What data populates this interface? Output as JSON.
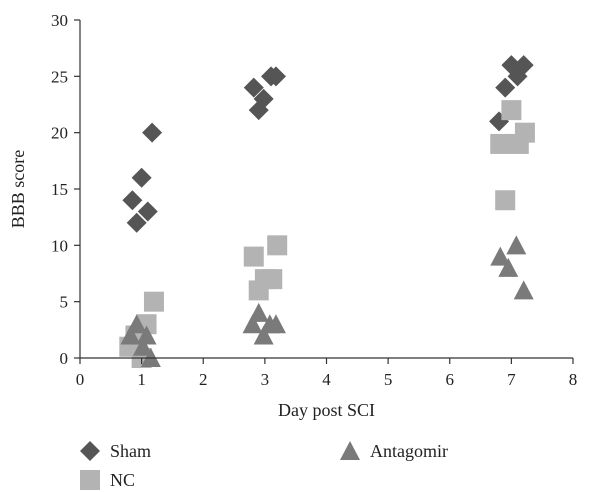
{
  "chart_data": {
    "type": "scatter",
    "title": "",
    "xlabel": "Day post SCI",
    "ylabel": "BBB score",
    "xlim": [
      0,
      8
    ],
    "ylim": [
      0,
      30
    ],
    "xticks": [
      0,
      1,
      2,
      3,
      4,
      5,
      6,
      7,
      8
    ],
    "yticks": [
      0,
      5,
      10,
      15,
      20,
      25,
      30
    ],
    "grid": false,
    "legend_position": "bottom",
    "series": [
      {
        "name": "Sham",
        "marker": "diamond",
        "color": "#555555",
        "points": [
          {
            "x": 0.85,
            "y": 14
          },
          {
            "x": 0.92,
            "y": 12
          },
          {
            "x": 1.0,
            "y": 16
          },
          {
            "x": 1.1,
            "y": 13
          },
          {
            "x": 1.17,
            "y": 20
          },
          {
            "x": 2.82,
            "y": 24
          },
          {
            "x": 2.9,
            "y": 22
          },
          {
            "x": 2.98,
            "y": 23
          },
          {
            "x": 3.1,
            "y": 25
          },
          {
            "x": 3.18,
            "y": 25
          },
          {
            "x": 6.8,
            "y": 21
          },
          {
            "x": 6.9,
            "y": 24
          },
          {
            "x": 7.0,
            "y": 26
          },
          {
            "x": 7.1,
            "y": 25
          },
          {
            "x": 7.2,
            "y": 26
          }
        ]
      },
      {
        "name": "NC",
        "marker": "square",
        "color": "#b3b3b3",
        "points": [
          {
            "x": 0.8,
            "y": 1
          },
          {
            "x": 0.9,
            "y": 2
          },
          {
            "x": 1.0,
            "y": 0
          },
          {
            "x": 1.08,
            "y": 3
          },
          {
            "x": 1.2,
            "y": 5
          },
          {
            "x": 2.82,
            "y": 9
          },
          {
            "x": 2.9,
            "y": 6
          },
          {
            "x": 3.0,
            "y": 7
          },
          {
            "x": 3.12,
            "y": 7
          },
          {
            "x": 3.2,
            "y": 10
          },
          {
            "x": 6.82,
            "y": 19
          },
          {
            "x": 6.9,
            "y": 14
          },
          {
            "x": 7.0,
            "y": 22
          },
          {
            "x": 7.12,
            "y": 19
          },
          {
            "x": 7.22,
            "y": 20
          }
        ]
      },
      {
        "name": "Antagomir",
        "marker": "triangle",
        "color": "#7a7a7a",
        "points": [
          {
            "x": 0.82,
            "y": 2
          },
          {
            "x": 0.92,
            "y": 3
          },
          {
            "x": 1.02,
            "y": 1
          },
          {
            "x": 1.08,
            "y": 2
          },
          {
            "x": 1.15,
            "y": 0
          },
          {
            "x": 2.8,
            "y": 3
          },
          {
            "x": 2.9,
            "y": 4
          },
          {
            "x": 2.98,
            "y": 2
          },
          {
            "x": 3.08,
            "y": 3
          },
          {
            "x": 3.18,
            "y": 3
          },
          {
            "x": 6.82,
            "y": 9
          },
          {
            "x": 6.95,
            "y": 8
          },
          {
            "x": 7.08,
            "y": 10
          },
          {
            "x": 7.2,
            "y": 6
          }
        ]
      }
    ]
  }
}
